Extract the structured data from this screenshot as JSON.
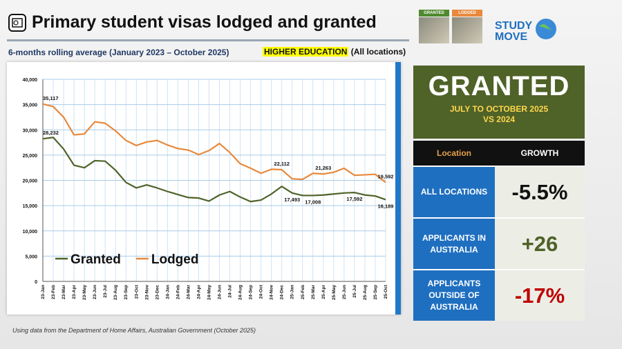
{
  "header": {
    "title": "Primary student visas lodged and granted",
    "subtitle": "6-months rolling average (January 2023 – October 2025)",
    "highlight": "HIGHER EDUCATION",
    "highlight_suffix": "(All locations)"
  },
  "logo": {
    "tag_1": "GRANTED",
    "tag_2": "LODGED",
    "brand_1": "STUDY",
    "brand_2": "MOVE"
  },
  "chart_data": {
    "type": "line",
    "categories": [
      "23-Jan",
      "23-Feb",
      "23-Mar",
      "23-Apr",
      "23-May",
      "23-Jun",
      "23-Jul",
      "23-Aug",
      "23-Sep",
      "23-Oct",
      "23-Nov",
      "23-Dec",
      "24-Jan",
      "24-Feb",
      "24-Mar",
      "24-Apr",
      "24-May",
      "24-Jun",
      "24-Jul",
      "24-Aug",
      "24-Sep",
      "24-Oct",
      "24-Nov",
      "24-Dec",
      "25-Jan",
      "25-Feb",
      "25-Mar",
      "25-Apr",
      "25-May",
      "25-Jun",
      "25-Jul",
      "25-Aug",
      "25-Sep",
      "25-Oct"
    ],
    "series": [
      {
        "name": "Granted",
        "color": "#4f6228",
        "values": [
          28232,
          28500,
          26200,
          23000,
          22500,
          23900,
          23800,
          22000,
          19600,
          18500,
          19100,
          18500,
          17800,
          17200,
          16600,
          16500,
          15900,
          17100,
          17800,
          16700,
          15800,
          16100,
          17300,
          18800,
          17493,
          17008,
          17008,
          17100,
          17300,
          17500,
          17592,
          17100,
          16900,
          16189
        ],
        "value_labels": [
          "28,232",
          null,
          null,
          null,
          null,
          null,
          null,
          null,
          null,
          null,
          null,
          null,
          null,
          null,
          null,
          null,
          null,
          null,
          null,
          null,
          null,
          null,
          null,
          null,
          "17,493",
          null,
          "17,008",
          null,
          null,
          null,
          "17,592",
          null,
          null,
          "16,189"
        ]
      },
      {
        "name": "Lodged",
        "color": "#e8893c",
        "values": [
          35117,
          34600,
          32500,
          29000,
          29200,
          31600,
          31300,
          29800,
          27900,
          26900,
          27600,
          27900,
          27000,
          26300,
          26000,
          25100,
          25900,
          27300,
          25500,
          23300,
          22400,
          21400,
          22200,
          22112,
          20300,
          20200,
          21400,
          21263,
          21600,
          22400,
          21000,
          21100,
          21200,
          19592
        ],
        "value_labels": [
          "35,117",
          null,
          null,
          null,
          null,
          null,
          null,
          null,
          null,
          null,
          null,
          null,
          null,
          null,
          null,
          null,
          null,
          null,
          null,
          null,
          null,
          null,
          null,
          "22,112",
          null,
          null,
          null,
          "21,263",
          null,
          null,
          null,
          null,
          null,
          "19,592"
        ]
      }
    ],
    "ylim": [
      0,
      40000
    ],
    "yticks": [
      0,
      {
        "value": 5000,
        "label": "5,000"
      },
      {
        "value": 10000,
        "label": "10,000"
      },
      {
        "value": 15000,
        "label": "15,000"
      },
      {
        "value": 20000,
        "label": "20,000"
      },
      {
        "value": 25000,
        "label": "25,000"
      },
      {
        "value": 30000,
        "label": "30,000"
      },
      {
        "value": 35000,
        "label": "35,000"
      },
      {
        "value": 40000,
        "label": "40,000"
      }
    ],
    "grid": true,
    "legend": "lower left"
  },
  "panel": {
    "title": "GRANTED",
    "subtitle": "JULY TO OCTOBER 2025 VS 2024"
  },
  "table": {
    "header": [
      "Location",
      "GROWTH"
    ],
    "rows": [
      [
        "ALL LOCATIONS",
        "-5.5%"
      ],
      [
        "APPLICANTS IN AUSTRALIA",
        "+26"
      ],
      [
        "APPLICANTS OUTSIDE OF AUSTRALIA",
        "-17%"
      ]
    ]
  },
  "footer": "Using data from the Department of Home Affairs, Australian Government (October 2025)"
}
